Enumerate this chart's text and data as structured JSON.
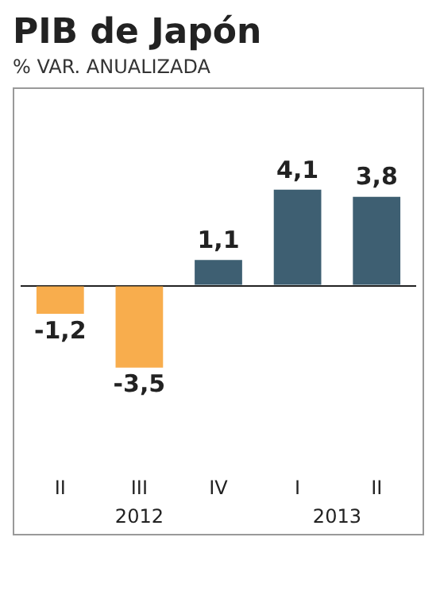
{
  "chart_data": {
    "type": "bar",
    "title": "PIB de Japón",
    "subtitle": "% VAR. ANUALIZADA",
    "categories": [
      "II",
      "III",
      "IV",
      "I",
      "II"
    ],
    "values": [
      -1.2,
      -3.5,
      1.1,
      4.1,
      3.8
    ],
    "colors": [
      "#f8ad4d",
      "#f8ad4d",
      "#3e5f72",
      "#3e5f72",
      "#3e5f72"
    ],
    "value_labels": [
      "-1,2",
      "-3,5",
      "1,1",
      "4,1",
      "3,8"
    ],
    "tick_labels": "x",
    "annotations": [
      "2012",
      "2013"
    ]
  }
}
